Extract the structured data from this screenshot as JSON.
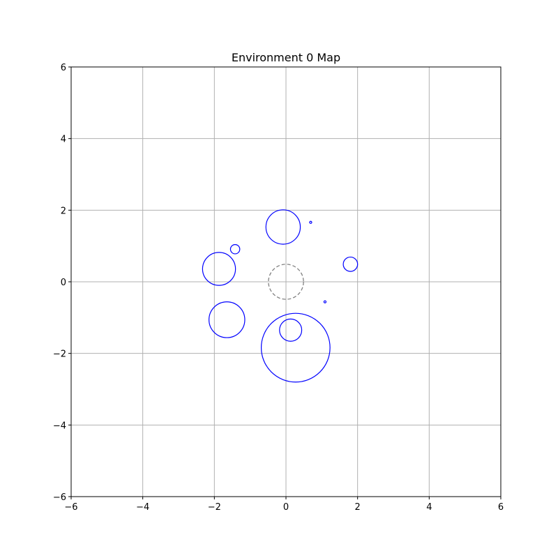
{
  "chart_data": {
    "type": "scatter",
    "title": "Environment 0 Map",
    "xlabel": "",
    "ylabel": "",
    "xlim": [
      -6,
      6
    ],
    "ylim": [
      -6,
      6
    ],
    "x_ticks": [
      "−6",
      "−4",
      "−2",
      "0",
      "2",
      "4",
      "6"
    ],
    "y_ticks": [
      "−6",
      "−4",
      "−2",
      "0",
      "2",
      "4",
      "6"
    ],
    "x_tick_values": [
      -6,
      -4,
      -2,
      0,
      2,
      4,
      6
    ],
    "y_tick_values": [
      -6,
      -4,
      -2,
      0,
      2,
      4,
      6
    ],
    "grid": true,
    "obstacles": [
      {
        "x": -0.08,
        "y": 1.53,
        "r": 0.48
      },
      {
        "x": 0.69,
        "y": 1.66,
        "r": 0.03
      },
      {
        "x": -1.42,
        "y": 0.91,
        "r": 0.13
      },
      {
        "x": -1.87,
        "y": 0.36,
        "r": 0.46
      },
      {
        "x": 1.8,
        "y": 0.49,
        "r": 0.2
      },
      {
        "x": 1.09,
        "y": -0.56,
        "r": 0.03
      },
      {
        "x": -1.65,
        "y": -1.06,
        "r": 0.5
      },
      {
        "x": 0.13,
        "y": -1.35,
        "r": 0.31
      },
      {
        "x": 0.27,
        "y": -1.84,
        "r": 0.96
      }
    ],
    "center_marker": {
      "x": 0,
      "y": 0,
      "r": 0.49,
      "style": "dashed"
    },
    "colors": {
      "obstacle": "#0000ff",
      "center_marker": "#808080",
      "grid": "#b0b0b0",
      "axes": "#000000"
    }
  }
}
